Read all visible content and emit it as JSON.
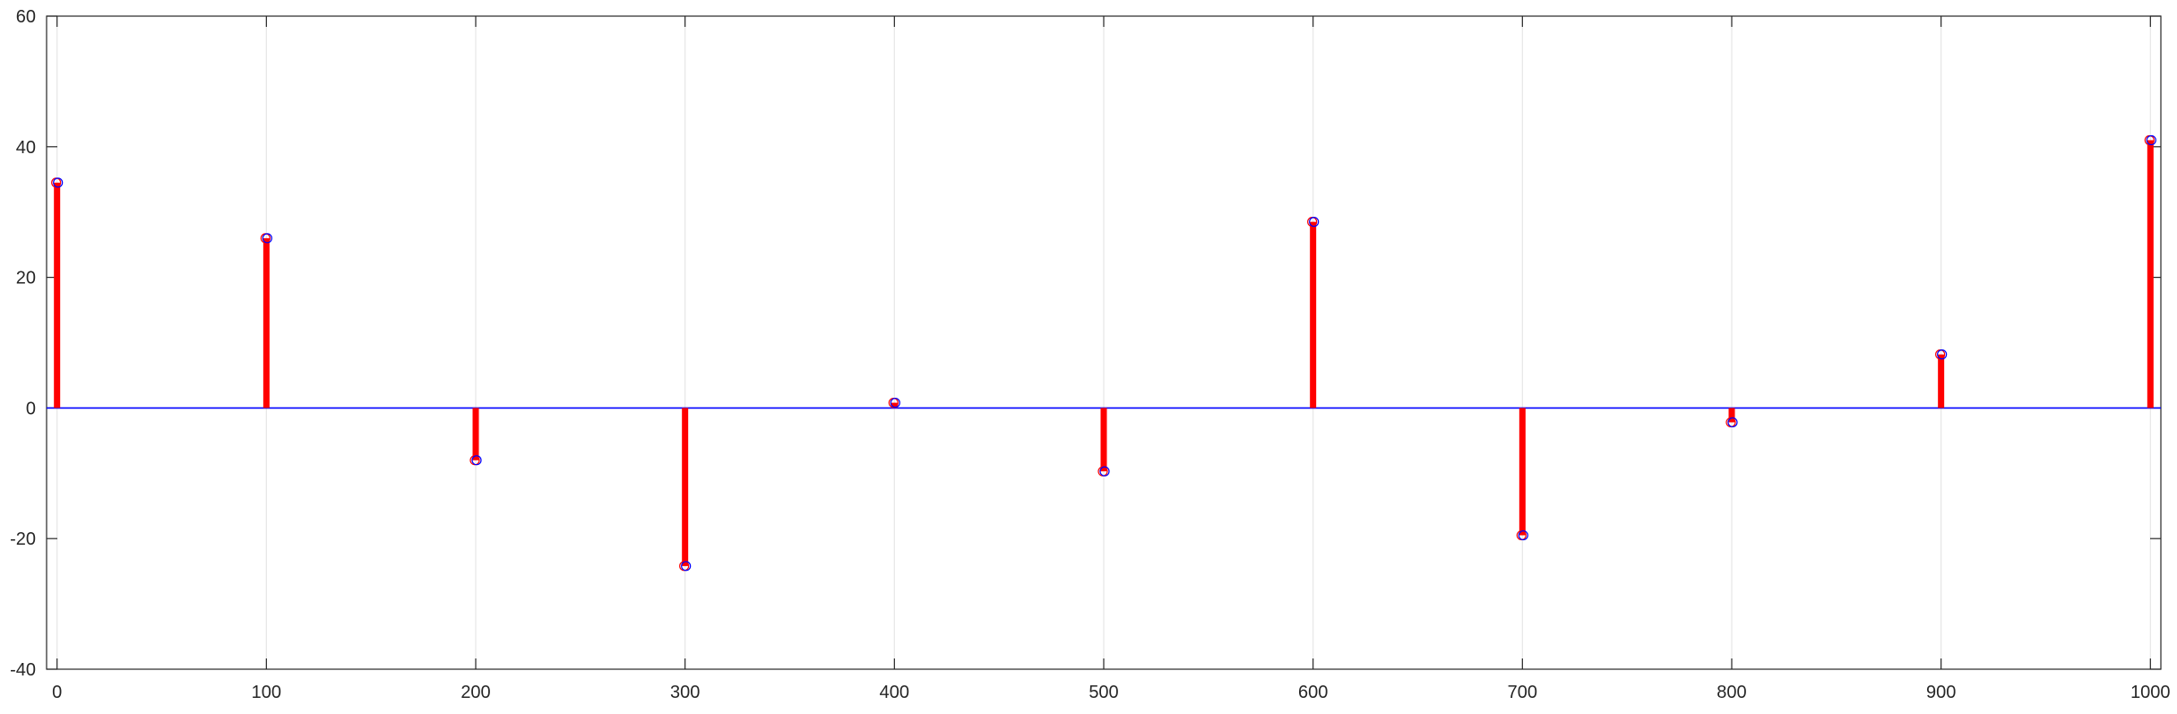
{
  "chart_data": {
    "type": "stem",
    "title": "",
    "xlabel": "",
    "ylabel": "",
    "xlim": [
      -5,
      1005
    ],
    "ylim": [
      -40,
      60
    ],
    "grid": "vertical",
    "xticks": [
      "0",
      "100",
      "200",
      "300",
      "400",
      "500",
      "600",
      "700",
      "800",
      "900",
      "1000"
    ],
    "yticks": [
      "-40",
      "-20",
      "0",
      "20",
      "40",
      "60"
    ],
    "xtick_values": [
      0,
      100,
      200,
      300,
      400,
      500,
      600,
      700,
      800,
      900,
      1000
    ],
    "ytick_values": [
      -40,
      -20,
      0,
      20,
      40,
      60
    ],
    "baseline": 0,
    "x": [
      0,
      100,
      200,
      300,
      400,
      500,
      600,
      700,
      800,
      900,
      1000
    ],
    "series": [
      {
        "values": [
          34.5,
          26,
          -8,
          -24.2,
          0.8,
          -9.7,
          28.5,
          -19.5,
          -2.2,
          8.2,
          41
        ],
        "color": "#ff0000",
        "marker": "circle"
      },
      {
        "values": [
          34.5,
          26,
          -8,
          -24.2,
          0.8,
          -9.7,
          28.5,
          -19.5,
          -2.2,
          8.2,
          41
        ],
        "color": "#0000ff",
        "marker": "circle"
      }
    ],
    "baseline_color": "#0000ff",
    "stem_color": "#ff0000"
  }
}
